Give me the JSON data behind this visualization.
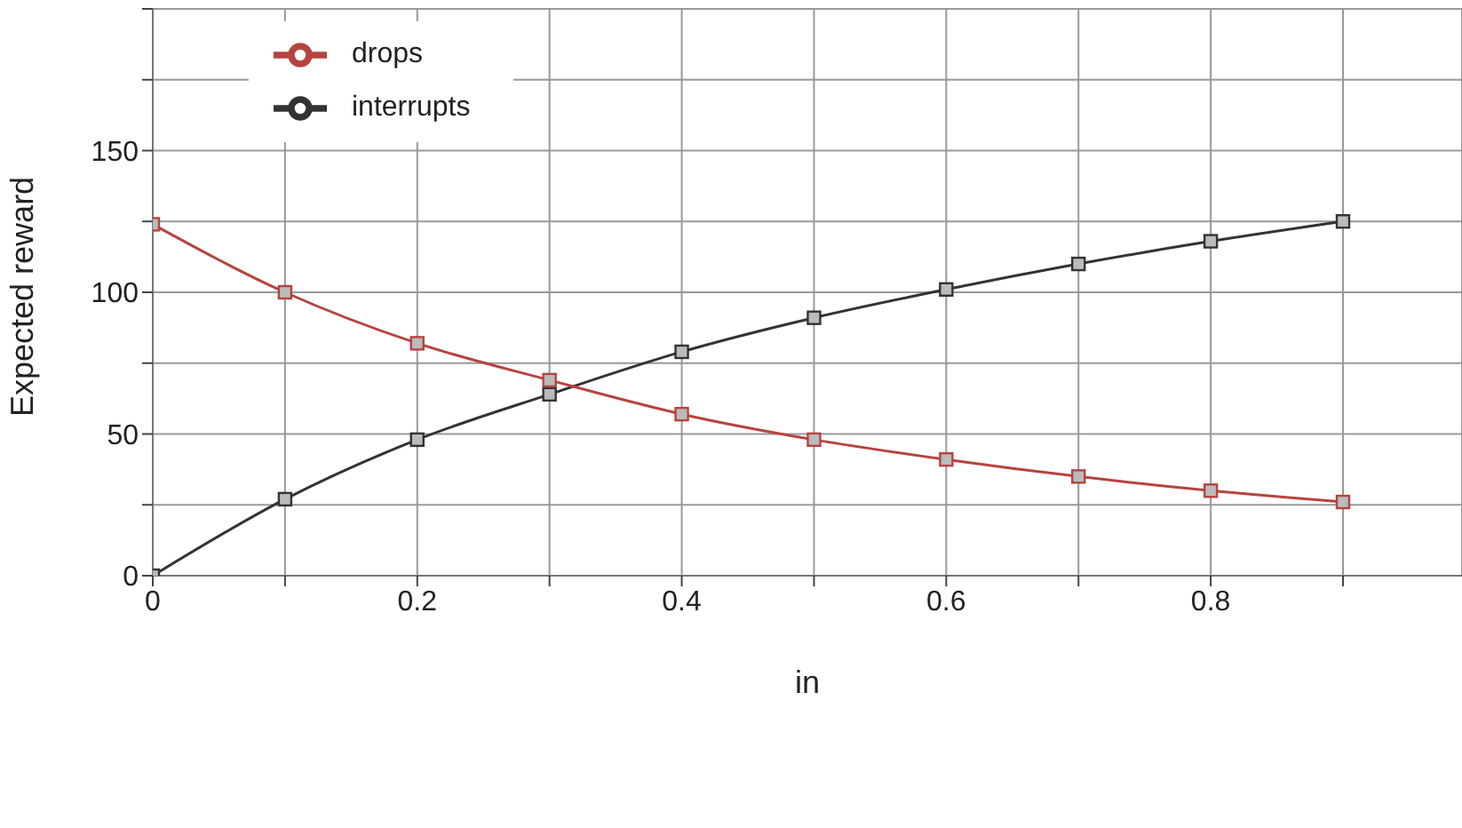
{
  "chart_data": {
    "type": "line",
    "xlabel": "in",
    "ylabel": "Expected reward",
    "x": [
      0,
      0.1,
      0.2,
      0.3,
      0.4,
      0.5,
      0.6,
      0.7,
      0.8,
      0.9
    ],
    "series": [
      {
        "name": "interrupts",
        "color": "#333333",
        "values": [
          0,
          27,
          48,
          64,
          79,
          91,
          101,
          110,
          118,
          125
        ]
      },
      {
        "name": "drops",
        "color": "#b5443f",
        "values": [
          124,
          100,
          82,
          69,
          57,
          48,
          41,
          35,
          30,
          26
        ]
      }
    ],
    "xlim": [
      0,
      0.99
    ],
    "xticks": [
      0,
      {
        "value": 0.1,
        "label": null
      },
      0.2,
      {
        "value": 0.3,
        "label": null
      },
      0.4,
      {
        "value": 0.5,
        "label": null
      },
      0.6,
      {
        "value": 0.7,
        "label": null
      },
      0.8,
      {
        "value": 0.9,
        "label": null
      }
    ],
    "ylim": [
      0,
      200
    ],
    "yticks": [
      0,
      {
        "value": 25,
        "label": null
      },
      50,
      {
        "value": 75,
        "label": null
      },
      100,
      {
        "value": 125,
        "label": null
      },
      150,
      {
        "value": 175,
        "label": null
      },
      {
        "value": 200,
        "label": null
      }
    ],
    "grid": true,
    "legend": "top left",
    "marker": "square",
    "line_style": "solid"
  }
}
